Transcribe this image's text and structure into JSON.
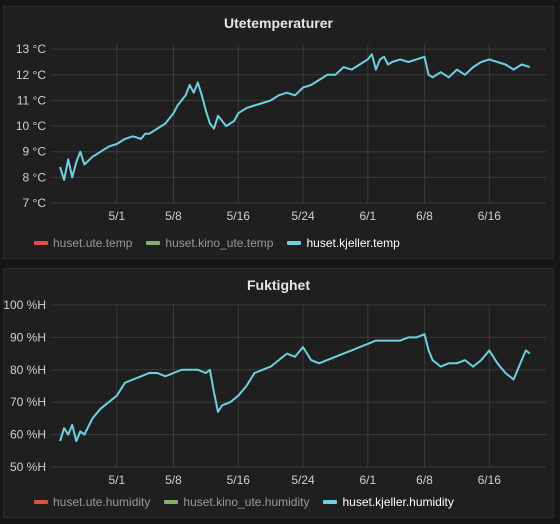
{
  "chart_data": [
    {
      "type": "line",
      "title": "Utetemperaturer",
      "unit_suffix": " °C",
      "y_ticks": [
        "13 °C",
        "12 °C",
        "11 °C",
        "10 °C",
        "9 °C",
        "8 °C",
        "7 °C"
      ],
      "ylim": [
        7,
        13.2
      ],
      "x_ticks": [
        "5/1",
        "5/8",
        "5/16",
        "5/24",
        "6/1",
        "6/8",
        "6/16"
      ],
      "grid": true,
      "legend_position": "bottom-left",
      "series": [
        {
          "name": "huset.ute.temp",
          "color": "#e24d42",
          "values": []
        },
        {
          "name": "huset.kino_ute.temp",
          "color": "#7eb26d",
          "values": []
        },
        {
          "name": "huset.kjeller.temp",
          "color": "#6ed0e0",
          "active": true,
          "x": [
            "4/24",
            "4/24.5",
            "4/25",
            "4/25.5",
            "4/26",
            "4/26.5",
            "4/27",
            "4/28",
            "4/28.5",
            "4/29",
            "4/30",
            "5/1",
            "5/2",
            "5/3",
            "5/4",
            "5/4.5",
            "5/5",
            "5/6",
            "5/7",
            "5/8",
            "5/8.5",
            "5/9",
            "5/9.5",
            "5/10",
            "5/10.5",
            "5/11",
            "5/11.5",
            "5/12",
            "5/12.5",
            "5/13",
            "5/13.5",
            "5/14",
            "5/14.5",
            "5/15",
            "5/15.5",
            "5/16",
            "5/17",
            "5/18",
            "5/19",
            "5/20",
            "5/21",
            "5/22",
            "5/23",
            "5/24",
            "5/25",
            "5/26",
            "5/27",
            "5/28",
            "5/29",
            "5/30",
            "5/31",
            "6/1",
            "6/1.5",
            "6/2",
            "6/2.5",
            "6/3",
            "6/3.5",
            "6/4",
            "6/5",
            "6/6",
            "6/7",
            "6/8",
            "6/8.5",
            "6/9",
            "6/10",
            "6/11",
            "6/12",
            "6/13",
            "6/14",
            "6/15",
            "6/16",
            "6/17",
            "6/18",
            "6/19",
            "6/20",
            "6/21"
          ],
          "values": [
            8.4,
            7.9,
            8.7,
            8.0,
            8.6,
            9.0,
            8.5,
            8.8,
            8.9,
            9.0,
            9.2,
            9.3,
            9.5,
            9.6,
            9.5,
            9.7,
            9.7,
            9.9,
            10.1,
            10.5,
            10.8,
            11.0,
            11.2,
            11.6,
            11.3,
            11.7,
            11.2,
            10.6,
            10.1,
            9.9,
            10.4,
            10.2,
            10.0,
            10.1,
            10.2,
            10.5,
            10.7,
            10.8,
            10.9,
            11.0,
            11.2,
            11.3,
            11.2,
            11.5,
            11.6,
            11.8,
            12.0,
            12.0,
            12.3,
            12.2,
            12.4,
            12.6,
            12.8,
            12.2,
            12.6,
            12.7,
            12.4,
            12.5,
            12.6,
            12.5,
            12.6,
            12.7,
            12.0,
            11.9,
            12.1,
            11.9,
            12.2,
            12.0,
            12.3,
            12.5,
            12.6,
            12.5,
            12.4,
            12.2,
            12.4,
            12.3
          ]
        }
      ]
    },
    {
      "type": "line",
      "title": "Fuktighet",
      "y_ticks": [
        "100 %H",
        "90 %H",
        "80 %H",
        "70 %H",
        "60 %H",
        "50 %H"
      ],
      "ylim": [
        50,
        100
      ],
      "x_ticks": [
        "5/1",
        "5/8",
        "5/16",
        "5/24",
        "6/1",
        "6/8",
        "6/16"
      ],
      "grid": true,
      "legend_position": "bottom-left",
      "series": [
        {
          "name": "huset.ute.humidity",
          "color": "#e24d42",
          "values": []
        },
        {
          "name": "huset.kino_ute.humidity",
          "color": "#7eb26d",
          "values": []
        },
        {
          "name": "huset.kjeller.humidity",
          "color": "#6ed0e0",
          "active": true,
          "x": [
            "4/24",
            "4/24.5",
            "4/25",
            "4/25.5",
            "4/26",
            "4/26.5",
            "4/27",
            "4/28",
            "4/29",
            "4/30",
            "5/1",
            "5/2",
            "5/3",
            "5/4",
            "5/5",
            "5/6",
            "5/7",
            "5/8",
            "5/9",
            "5/10",
            "5/11",
            "5/12",
            "5/12.5",
            "5/13",
            "5/13.5",
            "5/14",
            "5/15",
            "5/16",
            "5/17",
            "5/18",
            "5/19",
            "5/20",
            "5/21",
            "5/22",
            "5/23",
            "5/24",
            "5/24.5",
            "5/25",
            "5/26",
            "5/27",
            "5/28",
            "5/29",
            "5/30",
            "5/31",
            "6/1",
            "6/2",
            "6/3",
            "6/4",
            "6/5",
            "6/6",
            "6/7",
            "6/8",
            "6/8.5",
            "6/9",
            "6/10",
            "6/11",
            "6/12",
            "6/13",
            "6/14",
            "6/15",
            "6/16",
            "6/17",
            "6/18",
            "6/19",
            "6/20",
            "6/20.5",
            "6/21"
          ],
          "values": [
            58,
            62,
            60,
            63,
            58,
            61,
            60,
            65,
            68,
            70,
            72,
            76,
            77,
            78,
            79,
            79,
            78,
            79,
            80,
            80,
            80,
            79,
            80,
            73,
            67,
            69,
            70,
            72,
            75,
            79,
            80,
            81,
            83,
            85,
            84,
            87,
            85,
            83,
            82,
            83,
            84,
            85,
            86,
            87,
            88,
            89,
            89,
            89,
            89,
            90,
            90,
            91,
            86,
            83,
            81,
            82,
            82,
            83,
            81,
            83,
            86,
            82,
            79,
            77,
            83,
            86,
            85
          ]
        }
      ]
    }
  ]
}
